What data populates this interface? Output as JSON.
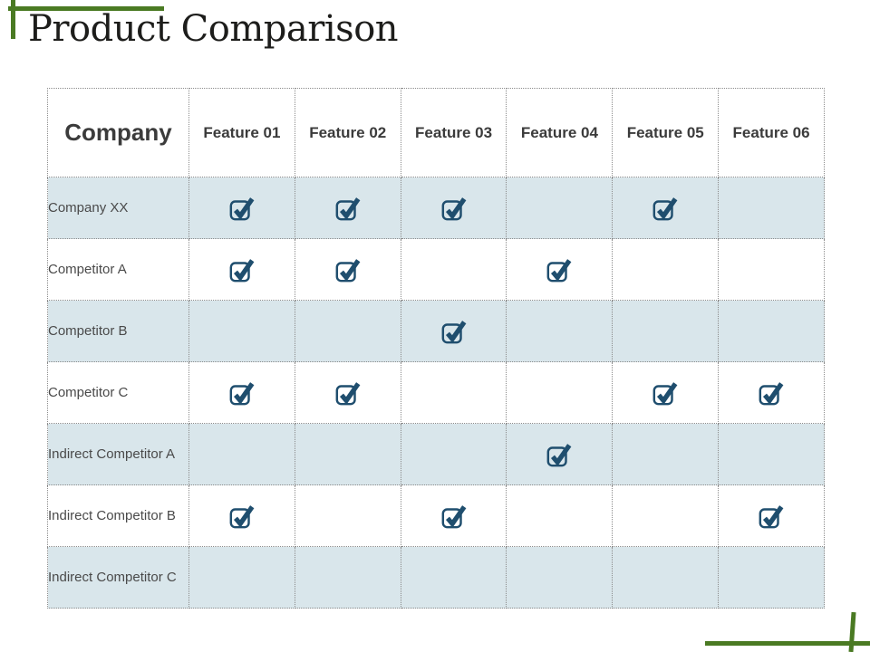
{
  "title": "Product Comparison",
  "colors": {
    "accent_green": "#4a7a23",
    "check_navy": "#1f4e6e",
    "row_alt_bg": "#d9e6eb",
    "border_gray": "#8c8c8c",
    "header_text": "#3b3b3b",
    "row_text": "#4a4a4a",
    "title_color": "#1d1d1b"
  },
  "icons": {
    "check": "checked-checkbox-icon"
  },
  "table": {
    "columns": [
      "Company",
      "Feature 01",
      "Feature 02",
      "Feature 03",
      "Feature 04",
      "Feature 05",
      "Feature 06"
    ],
    "rows": [
      {
        "label": "Company XX",
        "checks": [
          true,
          true,
          true,
          false,
          true,
          false
        ]
      },
      {
        "label": "Competitor A",
        "checks": [
          true,
          true,
          false,
          true,
          false,
          false
        ]
      },
      {
        "label": "Competitor B",
        "checks": [
          false,
          false,
          true,
          false,
          false,
          false
        ]
      },
      {
        "label": "Competitor C",
        "checks": [
          true,
          true,
          false,
          false,
          true,
          true
        ]
      },
      {
        "label": "Indirect Competitor A",
        "checks": [
          false,
          false,
          false,
          true,
          false,
          false
        ]
      },
      {
        "label": "Indirect Competitor B",
        "checks": [
          true,
          false,
          true,
          false,
          false,
          true
        ]
      },
      {
        "label": "Indirect Competitor C",
        "checks": [
          false,
          false,
          false,
          false,
          false,
          false
        ]
      }
    ]
  }
}
